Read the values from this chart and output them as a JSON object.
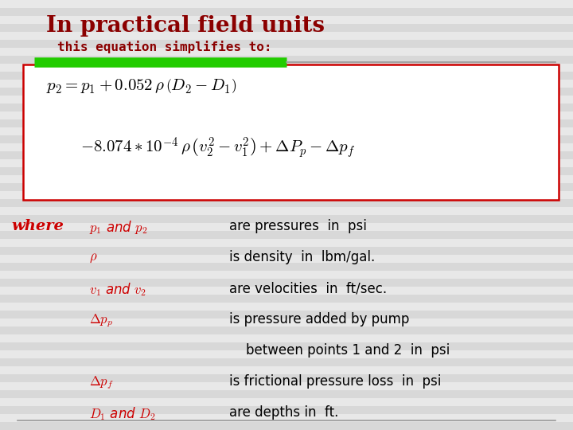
{
  "background_color": "#e8e8e8",
  "stripe_color": "#d8d8d8",
  "title": "In practical field units",
  "subtitle": "this equation simplifies to:",
  "title_color": "#8B0000",
  "subtitle_color": "#8B0000",
  "green_bar_color": "#22cc00",
  "grey_line_color": "#999999",
  "box_border_color": "#cc0000",
  "box_bg_color": "#ffffff",
  "eq1": "$p_2 = p_1 + 0.052\\,\\rho\\,\\left(D_2 - D_1\\right)$",
  "eq2": "$-8.074 * 10^{-4}\\,\\rho\\,\\left(v_2^2 - v_1^2\\right) + \\Delta P_p - \\Delta p_f$",
  "where_color": "#cc0000",
  "terms": [
    {
      "label": "$p_1$ and $p_2$",
      "desc": "are pressures  in  psi"
    },
    {
      "label": "$\\rho$",
      "desc": "is density  in  lbm/gal."
    },
    {
      "label": "$v_1$ and $v_2$",
      "desc": "are velocities  in  ft/sec."
    },
    {
      "label": "$\\Delta p_p$",
      "desc": "is pressure added by pump"
    },
    {
      "label": "",
      "desc": "    between points 1 and 2  in  psi"
    },
    {
      "label": "$\\Delta p_f$",
      "desc": "is frictional pressure loss  in  psi"
    },
    {
      "label": "$D_1$ and $D_2$",
      "desc": "are depths in  ft."
    }
  ],
  "term_label_color": "#cc0000",
  "term_desc_color": "#000000"
}
